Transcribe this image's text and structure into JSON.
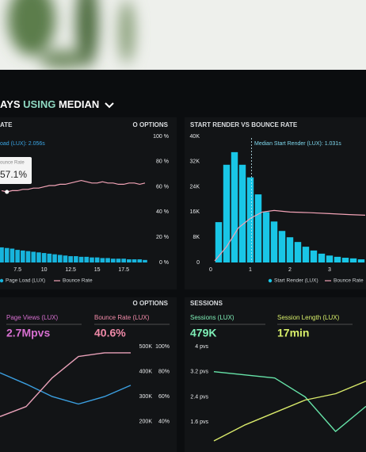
{
  "header": {
    "title_start": "AYS",
    "title_mid": "USING",
    "title_end": "MEDIAN"
  },
  "chart_data": [
    {
      "type": "bar",
      "title": "ATE",
      "options": "O OPTIONS",
      "subtitle": "oad (LUX): 2.056s",
      "tooltip_title": "ounce Rate",
      "tooltip_value": "57.1%",
      "x": [
        6,
        6.5,
        7,
        7.5,
        8,
        8.5,
        9,
        9.5,
        10,
        10.5,
        11,
        11.5,
        12,
        12.5,
        13,
        13.5,
        14,
        14.5,
        15,
        15.5,
        16,
        16.5,
        17,
        17.5,
        18,
        18.5,
        19,
        19.5
      ],
      "series": [
        {
          "name": "Page Load (LUX)",
          "color": "#17b4dc",
          "values": [
            12,
            11.5,
            11,
            10,
            9.5,
            9,
            8.5,
            8,
            7.5,
            7,
            6.5,
            6,
            5.5,
            5,
            5,
            4.5,
            4.5,
            4,
            4,
            3.5,
            3.5,
            3,
            3,
            3,
            2.5,
            2.5,
            2.5,
            2
          ]
        },
        {
          "name": "Bounce Rate",
          "color": "#f2a3b6",
          "type": "line",
          "values": [
            57,
            56,
            57,
            57,
            58,
            58,
            59,
            59,
            60,
            61,
            61,
            62,
            62,
            63,
            64,
            65,
            64,
            63,
            63,
            64,
            63,
            63,
            62,
            62,
            63,
            63,
            62,
            63
          ]
        }
      ],
      "xlim": [
        5.85,
        19.65
      ],
      "xticks": [
        7.5,
        10,
        12.5,
        15,
        17.5
      ],
      "ylim": [
        0,
        100
      ],
      "yticks": [
        {
          "value": 100,
          "label": "100 %"
        },
        {
          "value": 80,
          "label": "80 %"
        },
        {
          "value": 60,
          "label": "60 %"
        },
        {
          "value": 40,
          "label": "40 %"
        },
        {
          "value": 20,
          "label": "20 %"
        },
        {
          "value": 0,
          "label": "0 %"
        }
      ]
    },
    {
      "type": "histogram",
      "title": "START RENDER VS BOUNCE RATE",
      "annotation": "Median Start Render (LUX): 1.031s",
      "median": 1.031,
      "bins": [
        0.1,
        0.3,
        0.5,
        0.7,
        0.9,
        1.1,
        1.3,
        1.5,
        1.7,
        1.9,
        2.1,
        2.3,
        2.5,
        2.7,
        2.9,
        3.1,
        3.3,
        3.5,
        3.7,
        3.9
      ],
      "counts": [
        12800,
        31000,
        35000,
        31000,
        27000,
        21600,
        16000,
        13000,
        10000,
        8000,
        6500,
        5000,
        3800,
        2800,
        2200,
        1800,
        1500,
        1300,
        1000
      ],
      "series": [
        {
          "name": "Start Render (LUX)",
          "color": "#19c6e6"
        },
        {
          "name": "Bounce Rate",
          "color": "#f2a3b6",
          "x": [
            0.1,
            0.4,
            0.7,
            1,
            1.3,
            1.6,
            2,
            2.5,
            3,
            3.5,
            3.9
          ],
          "values": [
            500,
            5000,
            11000,
            14000,
            16000,
            16500,
            16000,
            15800,
            15500,
            15200,
            15000
          ]
        }
      ],
      "xlim": [
        0,
        3.92
      ],
      "xticks": [
        0,
        1,
        2,
        3
      ],
      "ylim": [
        0,
        40000
      ],
      "yticks": [
        {
          "value": 40000,
          "label": "40K"
        },
        {
          "value": 32000,
          "label": "32K"
        },
        {
          "value": 24000,
          "label": "24K"
        },
        {
          "value": 16000,
          "label": "16K"
        },
        {
          "value": 8000,
          "label": "8K"
        },
        0
      ]
    },
    {
      "type": "line",
      "options": "O OPTIONS",
      "categories": [
        null,
        null,
        null,
        null,
        null,
        null
      ],
      "series": [
        {
          "name": "Page Views (LUX)",
          "color": "#3b9fe0",
          "summary": "2.7Mpvs",
          "summary_color": "#d76fd0",
          "values": [
            395000,
            350000,
            300000,
            270000,
            300000,
            345000
          ]
        },
        {
          "name": "Bounce Rate (LUX)",
          "color": "#e8a0b8",
          "axis": "y2",
          "summary": "40.6%",
          "summary_color": "#f08aa8",
          "values": [
            44,
            52,
            75,
            92,
            95,
            95
          ]
        }
      ],
      "ylim": [
        110000,
        500000
      ],
      "yticks": [
        {
          "value": 500000,
          "label": "500K"
        },
        {
          "value": 400000,
          "label": "400K"
        },
        {
          "value": 300000,
          "label": "300K"
        },
        {
          "value": 200000,
          "label": "200K"
        }
      ],
      "y2lim": [
        22,
        100
      ],
      "y2ticks": [
        {
          "value": 100,
          "label": "100%"
        },
        {
          "value": 80,
          "label": "80%"
        },
        {
          "value": 60,
          "label": "60%"
        },
        {
          "value": 40,
          "label": "40%"
        }
      ]
    },
    {
      "type": "line",
      "title": "SESSIONS",
      "categories": [
        null,
        null,
        null,
        null,
        null,
        null
      ],
      "series": [
        {
          "name": "Sessions (LUX)",
          "color": "#66e3a8",
          "summary": "479K",
          "summary_color": "#7ff0b8",
          "values": [
            3.2,
            3.1,
            3.0,
            2.4,
            1.3,
            2.1
          ]
        },
        {
          "name": "Session Length (LUX)",
          "color": "#d8e96a",
          "summary": "17min",
          "summary_color": "#d8ef6a",
          "values": [
            1.0,
            1.5,
            1.9,
            2.3,
            2.5,
            2.9
          ]
        }
      ],
      "ylim": [
        0.9,
        4
      ],
      "yticks": [
        {
          "value": 4,
          "label": "4 pvs"
        },
        {
          "value": 3.2,
          "label": "3.2 pvs"
        },
        {
          "value": 2.4,
          "label": "2.4 pvs"
        },
        {
          "value": 1.6,
          "label": "1.6 pvs"
        }
      ]
    }
  ]
}
